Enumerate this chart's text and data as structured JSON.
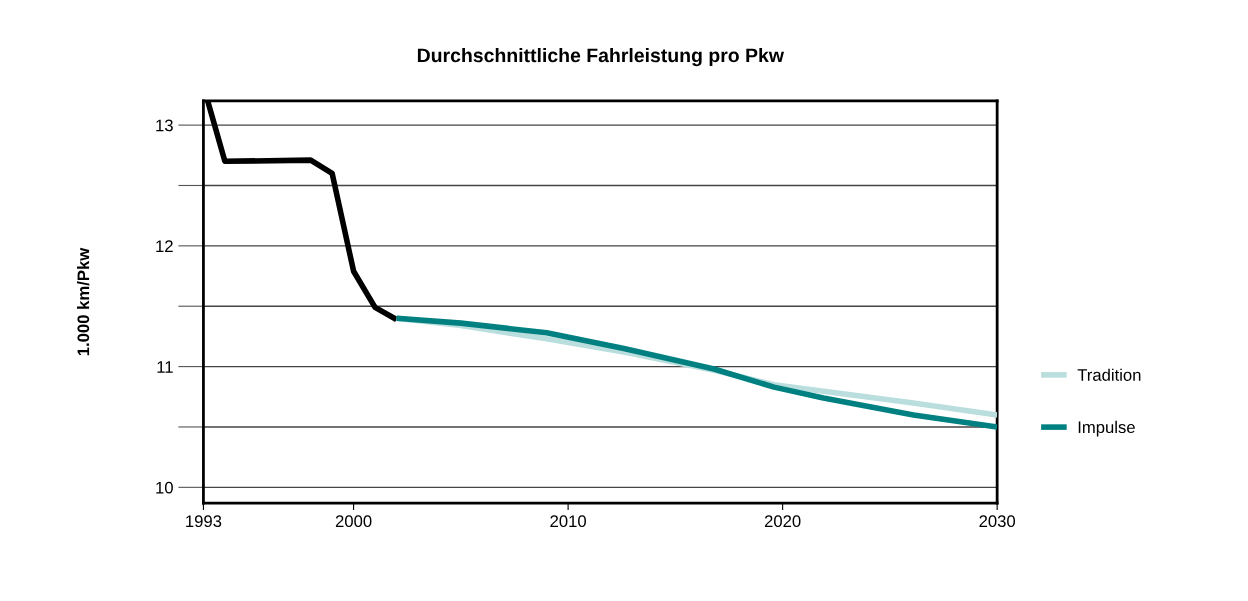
{
  "chart_data": {
    "type": "line",
    "title": "Durchschnittliche Fahrleistung pro Pkw",
    "ylabel": "1.000 km/Pkw",
    "xlim": [
      1993,
      2030
    ],
    "xticks": [
      1993,
      2000,
      2010,
      2020,
      2030
    ],
    "ylim": [
      9.87,
      13.2
    ],
    "yticks": [
      10,
      {
        "value": 10.5,
        "label": null
      },
      11,
      {
        "value": 11.5,
        "label": null
      },
      12,
      {
        "value": 12.5,
        "label": null
      },
      13
    ],
    "grid": "y",
    "legend": "right",
    "line_style": "solid",
    "marker": "none",
    "series": [
      {
        "color": "#000000",
        "x": [
          1993.2,
          1994,
          1998,
          1999,
          2000,
          2001,
          2002
        ],
        "values": [
          13.2,
          12.7,
          12.71,
          12.6,
          11.79,
          11.49,
          11.39
        ]
      },
      {
        "name": "Tradition",
        "color": "#b9dedd",
        "x": [
          2002,
          2005,
          2009,
          2012.6,
          2016.8,
          2019.6,
          2026,
          2030
        ],
        "values": [
          11.4,
          11.34,
          11.23,
          11.12,
          10.97,
          10.85,
          10.7,
          10.6
        ]
      },
      {
        "name": "Impulse",
        "color": "#008080",
        "x": [
          2002,
          2005,
          2009,
          2012.6,
          2016.8,
          2019.6,
          2021.9,
          2026.1,
          2030
        ],
        "values": [
          11.4,
          11.36,
          11.28,
          11.15,
          10.98,
          10.83,
          10.74,
          10.6,
          10.5
        ]
      }
    ]
  }
}
